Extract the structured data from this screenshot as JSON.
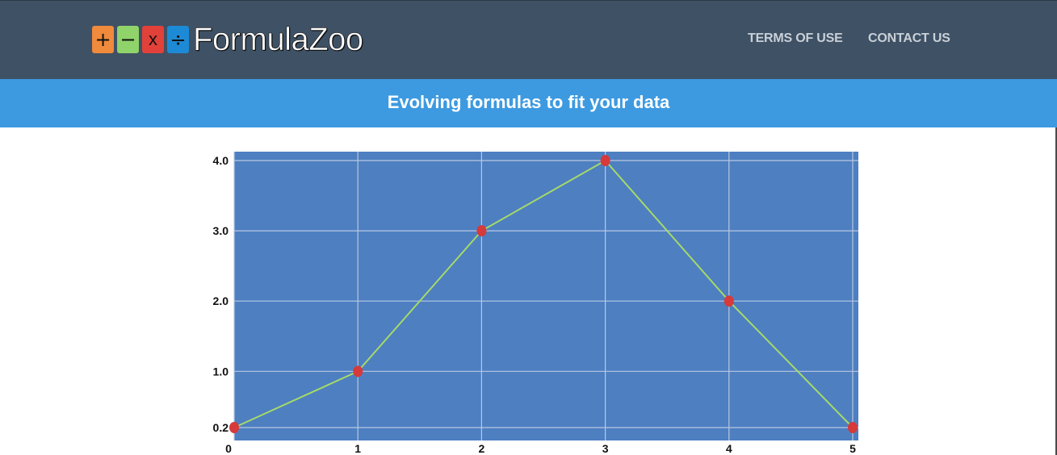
{
  "header": {
    "logo": {
      "operators": [
        "+",
        "−",
        "x",
        "÷"
      ],
      "operator_icons": [
        "plus-icon",
        "minus-icon",
        "times-icon",
        "divide-icon"
      ],
      "operator_colors": [
        "#f08a3c",
        "#8fd36a",
        "#e2413a",
        "#1d8ad6"
      ],
      "text": "FormulaZoo"
    },
    "nav": {
      "terms_label": "TERMS OF USE",
      "contact_label": "CONTACT US"
    },
    "background_color": "#3f5164"
  },
  "banner": {
    "title": "Evolving formulas to fit your data",
    "background_color": "#3d9ae0"
  },
  "chart_data": {
    "type": "line",
    "x": [
      0,
      1,
      2,
      3,
      4,
      5
    ],
    "values": [
      0.2,
      1.0,
      3.0,
      4.0,
      2.0,
      0.2
    ],
    "x_tick_labels": [
      "0",
      "1",
      "2",
      "3",
      "4",
      "5"
    ],
    "y_tick_labels": [
      "0.2",
      "1.0",
      "2.0",
      "3.0",
      "4.0"
    ],
    "y_ticks": [
      0.2,
      1.0,
      2.0,
      3.0,
      4.0
    ],
    "xlim": [
      0,
      5
    ],
    "grid": true,
    "plot_background": "#4d7fc1",
    "line_color": "#a6d96a",
    "marker_color": "#d63a3a"
  }
}
